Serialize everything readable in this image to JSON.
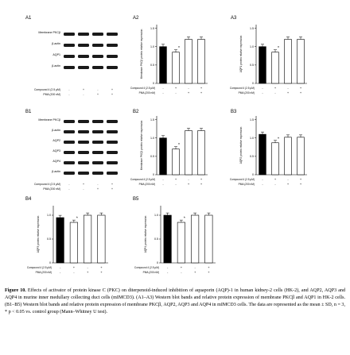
{
  "panels": {
    "A1": "A1",
    "A2": "A2",
    "A3": "A3",
    "B1": "B1",
    "B2": "B2",
    "B3": "B3",
    "B4": "B4",
    "B5": "B5"
  },
  "blots": {
    "A1": {
      "rows": [
        "Membrane PKCβ",
        "β-actin",
        "AQP1",
        "β-actin"
      ]
    },
    "B1": {
      "rows": [
        "Membrane PKCβ",
        "β-actin",
        "AQP2",
        "AQP3",
        "AQP4",
        "β-actin"
      ]
    }
  },
  "treatment": {
    "compound": "Compound 4 (2.5 μM)",
    "pma": "PMA (200 nM)",
    "compound_signs": [
      "-",
      "+",
      "-",
      "+"
    ],
    "pma_signs": [
      "-",
      "-",
      "+",
      "+"
    ]
  },
  "chart_data": [
    {
      "id": "A2",
      "type": "bar",
      "ylabel": "Membrane PKCβ protein relative expression",
      "yticks": [
        "0",
        "0.5",
        "1.0",
        "1.5"
      ],
      "ylim": [
        0,
        1.6
      ],
      "values": [
        1.0,
        0.85,
        1.2,
        1.2
      ],
      "markers": [
        "",
        "*",
        "",
        ""
      ]
    },
    {
      "id": "A3",
      "type": "bar",
      "ylabel": "AQP1 protein relative expression",
      "yticks": [
        "0",
        "0.5",
        "1.0",
        "1.5"
      ],
      "ylim": [
        0,
        1.6
      ],
      "values": [
        1.0,
        0.85,
        1.2,
        1.2
      ],
      "markers": [
        "",
        "*",
        "",
        ""
      ]
    },
    {
      "id": "B2",
      "type": "bar",
      "ylabel": "Membrane PKCβ protein relative expression",
      "yticks": [
        "0",
        "0.5",
        "1.0",
        "1.5"
      ],
      "ylim": [
        0,
        1.6
      ],
      "values": [
        1.0,
        0.7,
        1.2,
        1.2
      ],
      "markers": [
        "",
        "*",
        "",
        ""
      ]
    },
    {
      "id": "B3",
      "type": "bar",
      "ylabel": "AQP2 protein relative expression",
      "yticks": [
        "0",
        "0.5",
        "1.0",
        "1.5"
      ],
      "ylim": [
        0,
        1.6
      ],
      "values": [
        1.1,
        0.87,
        1.02,
        1.02
      ],
      "markers": [
        "",
        "*",
        "",
        ""
      ]
    },
    {
      "id": "B4",
      "type": "bar",
      "ylabel": "AQP3 protein relative expression",
      "yticks": [
        "0",
        "0.5",
        "1.0"
      ],
      "ylim": [
        0,
        1.2
      ],
      "values": [
        0.95,
        0.85,
        1.0,
        1.0
      ],
      "markers": [
        "",
        "*",
        "",
        ""
      ]
    },
    {
      "id": "B5",
      "type": "bar",
      "ylabel": "AQP4 protein relative expression",
      "yticks": [
        "0",
        "0.5",
        "1.0"
      ],
      "ylim": [
        0,
        1.2
      ],
      "values": [
        1.0,
        0.85,
        1.0,
        1.0
      ],
      "markers": [
        "",
        "*",
        "",
        ""
      ]
    }
  ],
  "caption": {
    "label": "Figure 10.",
    "text": "Effects of activator of protein kinase C (PKC) on diterpenoid-induced inhibition of aquaporin (AQP)-1 in human kidney-2 cells (HK-2), and AQP2, AQP3 and AQP4 in murine inner medullary collecting duct cells (mIMCD3). (A1–A3) Western blot bands and relative protein expression of membrane PKCβ and AQP1 in HK-2 cells. (B1–B5) Western blot bands and relative protein expression of membrane PKCβ, AQP2, AQP3 and AQP4 in mIMCD3 cells. The data are represented as the mean ± SD, n = 3, * p < 0.05 vs. control group (Mann–Whitney U test)."
  },
  "colors": {
    "bar_control": "#000000",
    "bar_other": "#ffffff",
    "ink": "#000000"
  }
}
